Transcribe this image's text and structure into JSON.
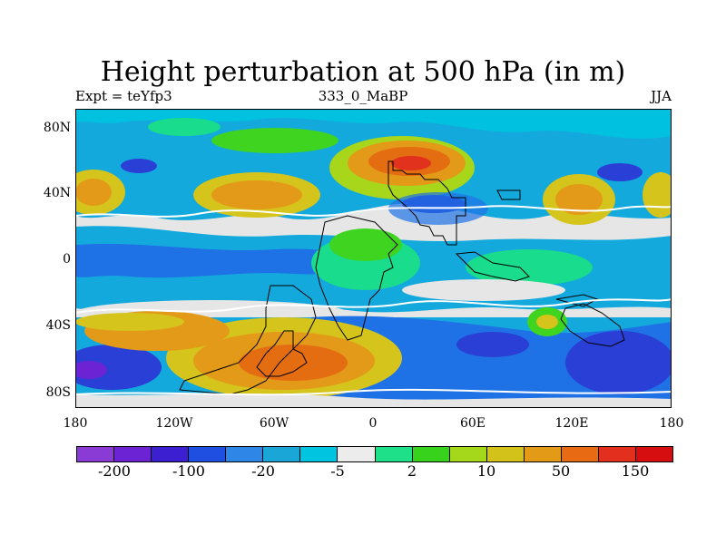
{
  "title": "Height perturbation at 500 hPa (in m)",
  "left_string": "Expt = teYfp3",
  "center_string": "333_0_MaBP",
  "right_string": "JJA",
  "lat_labels": [
    "80N",
    "40N",
    "0",
    "40S",
    "80S"
  ],
  "lon_labels": [
    "180",
    "120W",
    "60W",
    "0",
    "60E",
    "120E",
    "180"
  ],
  "colorbar": {
    "colors": [
      "#8a3bd6",
      "#6c23d4",
      "#3c1fd0",
      "#1e4fe0",
      "#2e86e6",
      "#1aa6d6",
      "#00c4e0",
      "#ececec",
      "#1de088",
      "#36d21c",
      "#a5d81a",
      "#d2c21a",
      "#e39a17",
      "#e86a12",
      "#e3301e",
      "#d70e10"
    ],
    "labels": [
      "-200",
      "-100",
      "-20",
      "-5",
      "2",
      "10",
      "50",
      "150"
    ]
  },
  "palette": {
    "bg": "#e6e6e6",
    "dark_blue": "#2a3fd6",
    "blue": "#1f72e6",
    "cyan": "#14a9dc",
    "light_cyan": "#00c2e0",
    "teal": "#19dc8c",
    "green": "#3fd41f",
    "yellow_green": "#a8d61a",
    "yellow": "#d4c41b",
    "orange": "#e39a18",
    "dark_orange": "#e46d12",
    "red": "#e0321c"
  }
}
